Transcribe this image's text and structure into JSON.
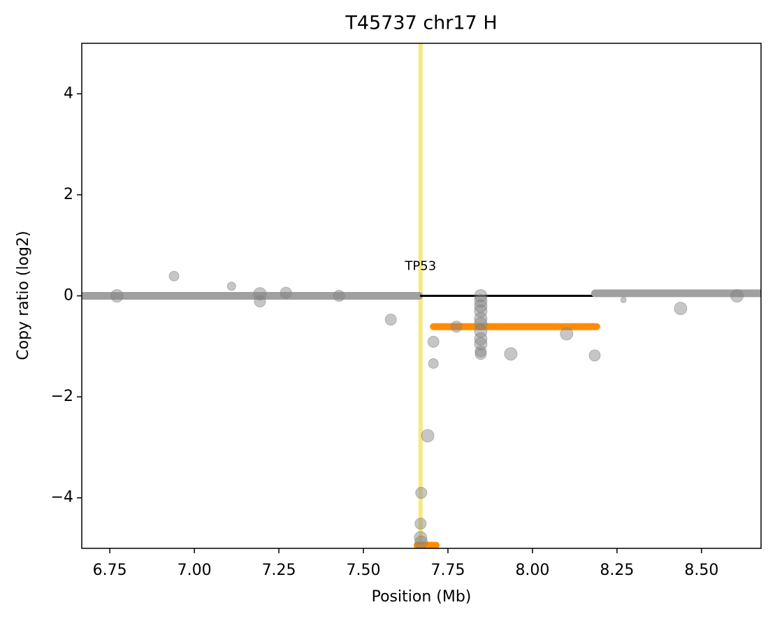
{
  "chart_data": {
    "type": "scatter",
    "title": "T45737 chr17 H",
    "xlabel": "Position (Mb)",
    "ylabel": "Copy ratio (log2)",
    "xlim": [
      6.667,
      8.676
    ],
    "ylim": [
      -5,
      5
    ],
    "xticks": [
      {
        "value": 6.75,
        "label": "6.75"
      },
      {
        "value": 7.0,
        "label": "7.00"
      },
      {
        "value": 7.25,
        "label": "7.25"
      },
      {
        "value": 7.5,
        "label": "7.50"
      },
      {
        "value": 7.75,
        "label": "7.75"
      },
      {
        "value": 8.0,
        "label": "8.00"
      },
      {
        "value": 8.25,
        "label": "8.25"
      },
      {
        "value": 8.5,
        "label": "8.50"
      }
    ],
    "yticks": [
      {
        "value": -4,
        "label": "−4"
      },
      {
        "value": -2,
        "label": "−2"
      },
      0,
      2,
      4
    ],
    "grid": false,
    "point_color": "#808080",
    "x": [
      6.771,
      6.94,
      7.11,
      7.194,
      7.194,
      7.271,
      7.428,
      7.581,
      7.671,
      7.669,
      7.669,
      7.671,
      7.69,
      7.707,
      7.707,
      7.775,
      7.847,
      7.847,
      7.847,
      7.847,
      7.847,
      7.847,
      7.847,
      7.847,
      7.847,
      7.847,
      7.847,
      7.936,
      8.101,
      8.184,
      8.269,
      8.438,
      8.605
    ],
    "values": [
      0,
      0.39,
      0.19,
      0.04,
      -0.11,
      0.06,
      0,
      -0.47,
      -3.9,
      -4.51,
      -4.79,
      -4.88,
      -2.77,
      -0.91,
      -1.34,
      -0.61,
      0.0,
      -0.1,
      -0.2,
      -0.3,
      -0.45,
      -0.55,
      -0.7,
      -0.85,
      -0.95,
      -1.1,
      -1.15,
      -1.15,
      -0.75,
      -1.18,
      -0.08,
      -0.25,
      0
    ],
    "sizes": [
      9,
      7,
      6,
      9,
      8,
      8,
      8,
      8,
      8,
      8,
      9,
      9,
      9,
      8,
      7,
      8,
      9,
      9,
      9,
      9,
      9,
      9,
      9,
      9,
      9,
      8,
      8,
      9,
      9,
      8,
      4,
      9,
      9
    ],
    "segments": [
      {
        "x0": 6.667,
        "x1": 7.665,
        "y": 0,
        "color": "#a0a0a0",
        "width": 11
      },
      {
        "x0": 7.67,
        "x1": 8.18,
        "y": 0,
        "color": "#000000",
        "width": 3
      },
      {
        "x0": 8.185,
        "x1": 8.676,
        "y": 0.05,
        "color": "#a0a0a0",
        "width": 11
      },
      {
        "x0": 7.707,
        "x1": 8.19,
        "y": -0.61,
        "color": "#ff8c00",
        "width": 10
      },
      {
        "x0": 7.659,
        "x1": 7.715,
        "y": -4.94,
        "color": "#ff8c00",
        "width": 10
      }
    ],
    "highlight": {
      "label": "TP53",
      "x": 7.669,
      "color": "#f5e56b"
    }
  }
}
